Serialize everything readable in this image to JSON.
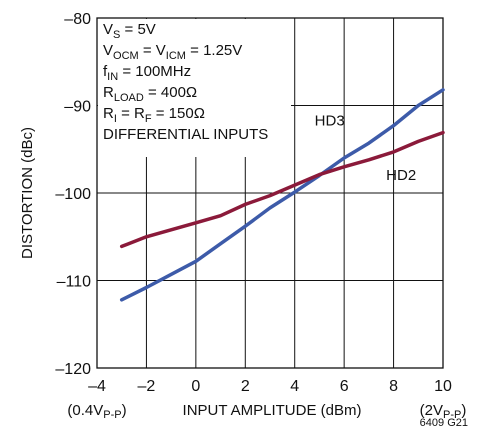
{
  "chart_data": {
    "type": "line",
    "xlabel": "INPUT AMPLITUDE (dBm)",
    "ylabel": "DISTORTION (dBc)",
    "xlim": [
      -4,
      10
    ],
    "ylim": [
      -120,
      -80
    ],
    "x_ticks": [
      -4,
      -2,
      0,
      2,
      4,
      6,
      8,
      10
    ],
    "y_ticks": [
      -80,
      -90,
      -100,
      -110,
      -120
    ],
    "x_tick_labels": [
      "–4",
      "–2",
      "0",
      "2",
      "4",
      "6",
      "8",
      "10"
    ],
    "y_tick_labels": [
      "–80",
      "–90",
      "–100",
      "–110",
      "–120"
    ],
    "x_sublabels": [
      {
        "pre": "(0.4V",
        "sub": "P-P",
        "post": ")"
      },
      {
        "pre": "(2V",
        "sub": "P-P",
        "post": ")"
      }
    ],
    "grid": true,
    "annotation_lines": [
      {
        "pre": "V",
        "sub": "S",
        "mid": " = 5V",
        "sub2": "",
        "post": ""
      },
      {
        "pre": "V",
        "sub": "OCM",
        "mid": " = V",
        "sub2": "ICM",
        "post": " = 1.25V"
      },
      {
        "pre": "f",
        "sub": "IN",
        "mid": " = 100MHz",
        "sub2": "",
        "post": ""
      },
      {
        "pre": "R",
        "sub": "LOAD",
        "mid": " = 400Ω",
        "sub2": "",
        "post": ""
      },
      {
        "pre": "R",
        "sub": "I",
        "mid": " = R",
        "sub2": "F",
        "post": " = 150Ω"
      },
      {
        "pre": "DIFFERENTIAL INPUTS",
        "sub": "",
        "mid": "",
        "sub2": "",
        "post": ""
      }
    ],
    "figure_code": "6409 G21",
    "series": [
      {
        "name": "HD3",
        "color": "#3d5ba9",
        "x": [
          -3,
          -2,
          -1,
          0,
          1,
          2,
          3,
          4,
          5,
          6,
          7,
          8,
          9,
          10
        ],
        "y": [
          -112.2,
          -110.8,
          -109.3,
          -107.8,
          -105.8,
          -103.8,
          -101.7,
          -99.9,
          -98,
          -96,
          -94.3,
          -92.3,
          -90,
          -88.2
        ]
      },
      {
        "name": "HD2",
        "color": "#8b1a3a",
        "x": [
          -3,
          -2,
          -1,
          0,
          1,
          2,
          3,
          4,
          5,
          6,
          7,
          8,
          9,
          10
        ],
        "y": [
          -106.1,
          -105,
          -104.2,
          -103.4,
          -102.6,
          -101.3,
          -100.3,
          -99.1,
          -97.9,
          -97,
          -96.2,
          -95.3,
          -94.1,
          -93.1
        ]
      }
    ]
  }
}
